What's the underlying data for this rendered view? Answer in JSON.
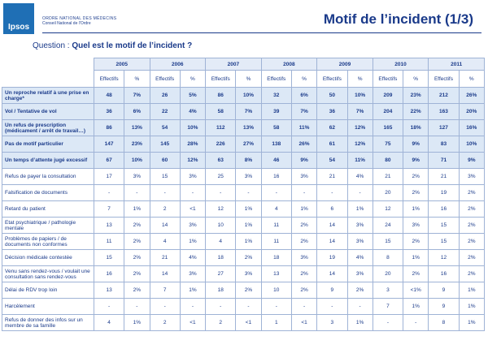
{
  "header": {
    "logo": "Ipsos",
    "org_line1": "Ordre National des Médecins",
    "org_line2": "Conseil National de l'Ordre",
    "title": "Motif de l’incident (1/3)"
  },
  "question": {
    "label": "Question :",
    "text": "Quel est le motif de l’incident ?"
  },
  "table": {
    "years": [
      "2005",
      "2006",
      "2007",
      "2008",
      "2009",
      "2010",
      "2011"
    ],
    "subheaders": [
      "Effectifs",
      "%"
    ],
    "rows": [
      {
        "label": "Un reproche relatif à une prise en charge*",
        "highlight": true,
        "cells": [
          "48",
          "7%",
          "26",
          "5%",
          "86",
          "10%",
          "32",
          "6%",
          "50",
          "10%",
          "209",
          "23%",
          "212",
          "26%"
        ]
      },
      {
        "label": "Vol / Tentative de vol",
        "highlight": true,
        "cells": [
          "36",
          "6%",
          "22",
          "4%",
          "58",
          "7%",
          "39",
          "7%",
          "36",
          "7%",
          "204",
          "22%",
          "163",
          "20%"
        ]
      },
      {
        "label": "Un refus de prescription (médicament / arrêt de travail…)",
        "highlight": true,
        "cells": [
          "86",
          "13%",
          "54",
          "10%",
          "112",
          "13%",
          "58",
          "11%",
          "62",
          "12%",
          "165",
          "18%",
          "127",
          "16%"
        ]
      },
      {
        "label": "Pas de motif particulier",
        "highlight": true,
        "cells": [
          "147",
          "23%",
          "145",
          "28%",
          "226",
          "27%",
          "138",
          "26%",
          "61",
          "12%",
          "75",
          "9%",
          "83",
          "10%"
        ]
      },
      {
        "label": "Un temps d’attente jugé excessif",
        "highlight": true,
        "cells": [
          "67",
          "10%",
          "60",
          "12%",
          "63",
          "8%",
          "46",
          "9%",
          "54",
          "11%",
          "80",
          "9%",
          "71",
          "9%"
        ]
      },
      {
        "label": "Refus de payer la consultation",
        "highlight": false,
        "cells": [
          "17",
          "3%",
          "15",
          "3%",
          "25",
          "3%",
          "16",
          "3%",
          "21",
          "4%",
          "21",
          "2%",
          "21",
          "3%"
        ]
      },
      {
        "label": "Falsification de documents",
        "highlight": false,
        "cells": [
          "-",
          "-",
          "-",
          "-",
          "-",
          "-",
          "-",
          "-",
          "-",
          "-",
          "20",
          "2%",
          "19",
          "2%"
        ]
      },
      {
        "label": "Retard du patient",
        "highlight": false,
        "cells": [
          "7",
          "1%",
          "2",
          "<1",
          "12",
          "1%",
          "4",
          "1%",
          "6",
          "1%",
          "12",
          "1%",
          "16",
          "2%"
        ]
      },
      {
        "label": "Etat psychiatrique / pathologie mentale",
        "highlight": false,
        "cells": [
          "13",
          "2%",
          "14",
          "3%",
          "10",
          "1%",
          "11",
          "2%",
          "14",
          "3%",
          "24",
          "3%",
          "15",
          "2%"
        ]
      },
      {
        "label": "Problèmes de papiers / de documents non conformes",
        "highlight": false,
        "cells": [
          "11",
          "2%",
          "4",
          "1%",
          "4",
          "1%",
          "11",
          "2%",
          "14",
          "3%",
          "15",
          "2%",
          "15",
          "2%"
        ]
      },
      {
        "label": "Décision médicale contestée",
        "highlight": false,
        "cells": [
          "15",
          "2%",
          "21",
          "4%",
          "18",
          "2%",
          "18",
          "3%",
          "19",
          "4%",
          "8",
          "1%",
          "12",
          "2%"
        ]
      },
      {
        "label": "Venu sans rendez-vous / voulait une consultation sans rendez-vous",
        "highlight": false,
        "cells": [
          "16",
          "2%",
          "14",
          "3%",
          "27",
          "3%",
          "13",
          "2%",
          "14",
          "3%",
          "20",
          "2%",
          "16",
          "2%"
        ]
      },
      {
        "label": "Délai de RDV trop loin",
        "highlight": false,
        "cells": [
          "13",
          "2%",
          "7",
          "1%",
          "18",
          "2%",
          "10",
          "2%",
          "9",
          "2%",
          "3",
          "<1%",
          "9",
          "1%"
        ]
      },
      {
        "label": "Harcèlement",
        "highlight": false,
        "cells": [
          "-",
          "-",
          "-",
          "-",
          "-",
          "-",
          "-",
          "-",
          "-",
          "-",
          "7",
          "1%",
          "9",
          "1%"
        ]
      },
      {
        "label": "Refus de donner des infos sur un membre de sa famille",
        "highlight": false,
        "cells": [
          "4",
          "1%",
          "2",
          "<1",
          "2",
          "<1",
          "1",
          "<1",
          "3",
          "1%",
          "-",
          "-",
          "8",
          "1%"
        ]
      }
    ]
  }
}
